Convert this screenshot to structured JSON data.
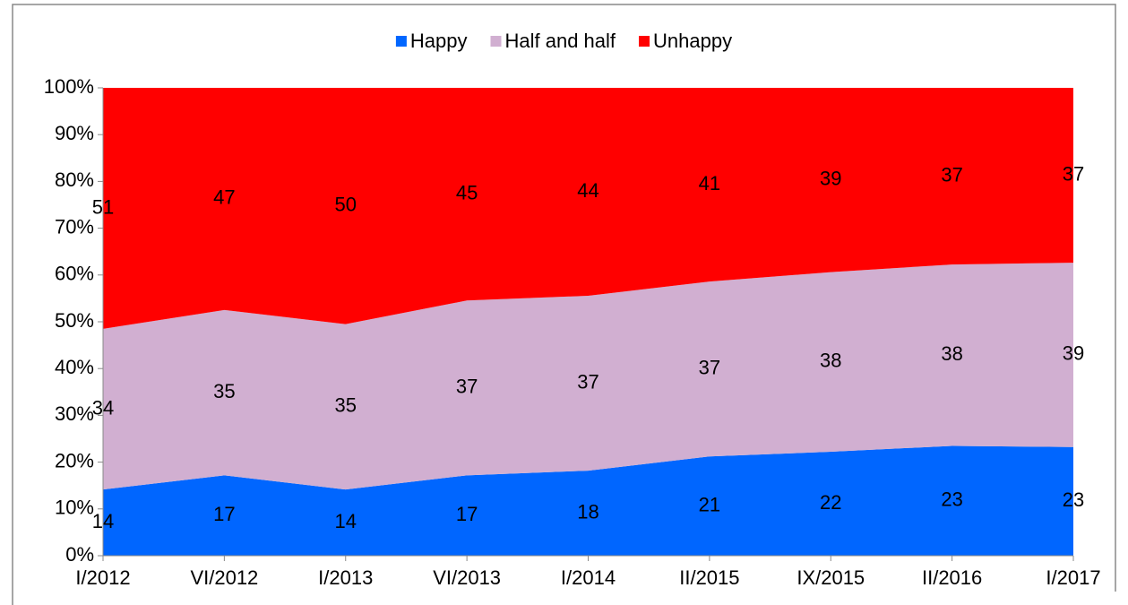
{
  "chart_data": {
    "type": "area",
    "stacking": "percent",
    "categories": [
      "I/2012",
      "VI/2012",
      "I/2013",
      "VI/2013",
      "I/2014",
      "II/2015",
      "IX/2015",
      "II/2016",
      "I/2017"
    ],
    "series": [
      {
        "name": "Happy",
        "color": "#0066ff",
        "values": [
          14,
          17,
          14,
          17,
          18,
          21,
          22,
          23,
          23
        ]
      },
      {
        "name": "Half and half",
        "color": "#d1afd1",
        "values": [
          34,
          35,
          35,
          37,
          37,
          37,
          38,
          38,
          39
        ]
      },
      {
        "name": "Unhappy",
        "color": "#ff0000",
        "values": [
          51,
          47,
          50,
          45,
          44,
          41,
          39,
          37,
          37
        ]
      }
    ],
    "ylim": [
      0,
      100
    ],
    "yticks": [
      {
        "value": 0,
        "label": "0%"
      },
      {
        "value": 10,
        "label": "10%"
      },
      {
        "value": 20,
        "label": "20%"
      },
      {
        "value": 30,
        "label": "30%"
      },
      {
        "value": 40,
        "label": "40%"
      },
      {
        "value": 50,
        "label": "50%"
      },
      {
        "value": 60,
        "label": "60%"
      },
      {
        "value": 70,
        "label": "70%"
      },
      {
        "value": 80,
        "label": "80%"
      },
      {
        "value": 90,
        "label": "90%"
      },
      {
        "value": 100,
        "label": "100%"
      }
    ],
    "legend": "top",
    "data_labels": true
  }
}
